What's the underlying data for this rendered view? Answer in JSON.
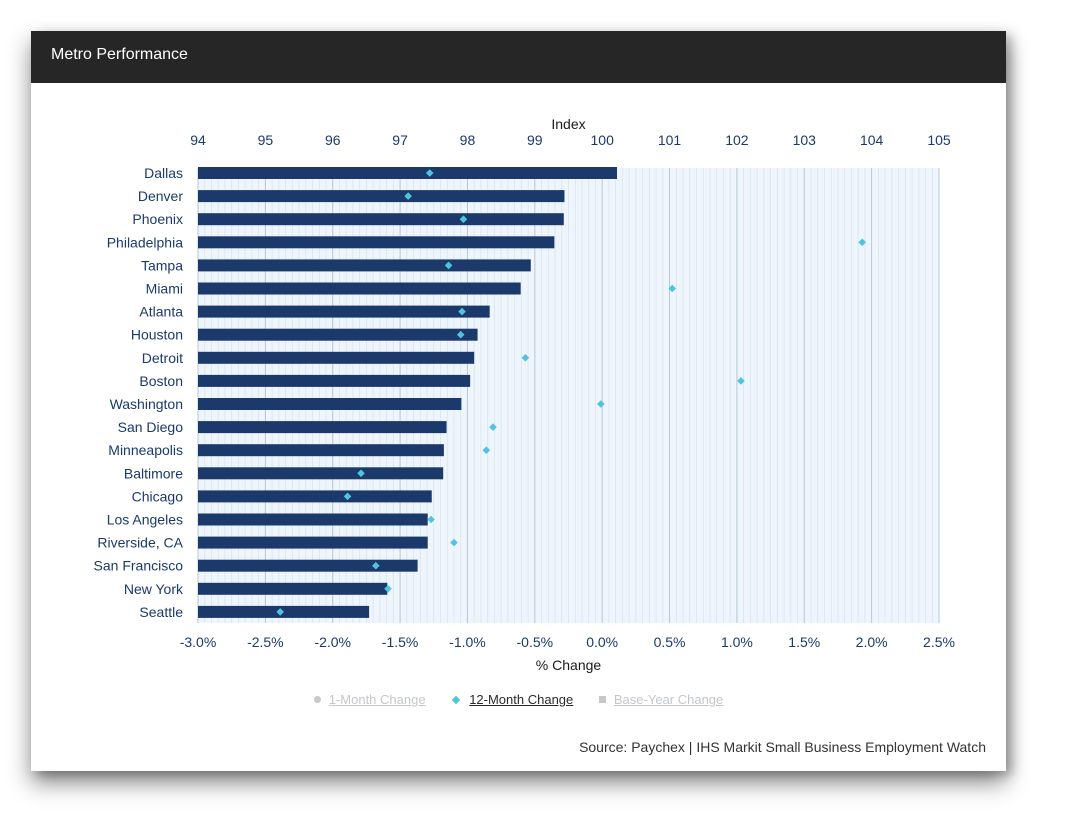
{
  "header": {
    "title": "Metro Performance"
  },
  "colors": {
    "header_bg": "#262626",
    "bar": "#1b3a6b",
    "marker": "#4fc3e0",
    "label": "#1b3a6b",
    "plot_bg": "#eef5fc"
  },
  "legend": {
    "items": [
      {
        "label": "1-Month Change",
        "icon": "circle-icon",
        "active": false
      },
      {
        "label": "12-Month Change",
        "icon": "diamond-icon",
        "active": true
      },
      {
        "label": "Base-Year Change",
        "icon": "square-icon",
        "active": false
      }
    ]
  },
  "source": "Source: Paychex | IHS Markit Small Business Employment Watch",
  "chart_data": {
    "type": "bar",
    "orientation": "horizontal",
    "top_axis": {
      "title": "Index",
      "range": [
        94,
        105
      ],
      "ticks": [
        "94",
        "95",
        "96",
        "97",
        "98",
        "99",
        "100",
        "101",
        "102",
        "103",
        "104",
        "105"
      ]
    },
    "bottom_axis": {
      "title": "% Change",
      "range": [
        -3.0,
        2.5
      ],
      "ticks": [
        "-3.0%",
        "-2.5%",
        "-2.0%",
        "-1.5%",
        "-1.0%",
        "-0.5%",
        "0.0%",
        "0.5%",
        "1.0%",
        "1.5%",
        "2.0%",
        "2.5%"
      ]
    },
    "categories": [
      "Dallas",
      "Denver",
      "Phoenix",
      "Philadelphia",
      "Tampa",
      "Miami",
      "Atlanta",
      "Houston",
      "Detroit",
      "Boston",
      "Washington",
      "San Diego",
      "Minneapolis",
      "Baltimore",
      "Chicago",
      "Los Angeles",
      "Riverside, CA",
      "San Francisco",
      "New York",
      "Seattle"
    ],
    "series": [
      {
        "name": "Index",
        "axis": "top",
        "type": "bar",
        "values": [
          100.22,
          99.44,
          99.43,
          99.29,
          98.94,
          98.79,
          98.33,
          98.15,
          98.1,
          98.04,
          97.91,
          97.69,
          97.65,
          97.64,
          97.47,
          97.41,
          97.41,
          97.26,
          96.81,
          96.54
        ]
      },
      {
        "name": "12-Month Change",
        "axis": "bottom",
        "type": "scatter",
        "values": [
          -1.28,
          -1.44,
          -1.03,
          1.93,
          -1.14,
          0.52,
          -1.04,
          -1.05,
          -0.57,
          1.03,
          -0.01,
          -0.81,
          -0.86,
          -1.79,
          -1.89,
          -1.27,
          -1.1,
          -1.68,
          -1.59,
          -2.39
        ]
      }
    ]
  }
}
